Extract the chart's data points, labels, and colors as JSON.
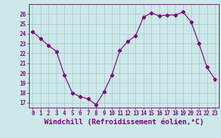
{
  "x": [
    0,
    1,
    2,
    3,
    4,
    5,
    6,
    7,
    8,
    9,
    10,
    11,
    12,
    13,
    14,
    15,
    16,
    17,
    18,
    19,
    20,
    21,
    22,
    23
  ],
  "y": [
    24.2,
    23.5,
    22.8,
    22.2,
    19.8,
    18.0,
    17.6,
    17.4,
    16.8,
    18.1,
    19.8,
    22.3,
    23.2,
    23.8,
    25.7,
    26.1,
    25.8,
    25.9,
    25.9,
    26.2,
    25.2,
    23.0,
    20.6,
    19.4
  ],
  "line_color": "#800080",
  "marker": "D",
  "marker_size": 2.5,
  "bg_color": "#cce8e8",
  "grid_color": "#aacaca",
  "xlabel": "Windchill (Refroidissement éolien,°C)",
  "xlim": [
    -0.5,
    23.5
  ],
  "ylim": [
    16.5,
    27.0
  ],
  "yticks": [
    17,
    18,
    19,
    20,
    21,
    22,
    23,
    24,
    25,
    26
  ],
  "xtick_labels": [
    "0",
    "1",
    "2",
    "3",
    "4",
    "5",
    "6",
    "7",
    "8",
    "9",
    "10",
    "11",
    "12",
    "13",
    "14",
    "15",
    "16",
    "17",
    "18",
    "19",
    "20",
    "21",
    "22",
    "23"
  ],
  "tick_color": "#800080",
  "label_color": "#800080",
  "tick_fontsize": 5.5,
  "xlabel_fontsize": 7.5
}
